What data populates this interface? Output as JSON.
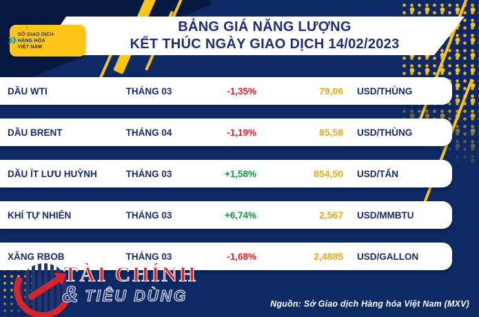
{
  "mxv_logo": {
    "line1": "SỞ GIAO DỊCH",
    "line2": "HÀNG HÓA",
    "line3": "VIỆT NAM",
    "trademark": "™"
  },
  "header": {
    "title_line1": "BẢNG GIÁ NĂNG LƯỢNG",
    "title_line2": "KẾT THÚC NGÀY GIAO DỊCH 14/02/2023"
  },
  "chart_data": {
    "type": "table",
    "title": "BẢNG GIÁ NĂNG LƯỢNG KẾT THÚC NGÀY GIAO DỊCH 14/02/2023",
    "rows": [
      {
        "name": "DẦU WTI",
        "month": "THÁNG 03",
        "change": "-1,35%",
        "price": "79,06",
        "unit": "USD/THÙNG"
      },
      {
        "name": "DẦU BRENT",
        "month": "THÁNG 04",
        "change": "-1,19%",
        "price": "85,58",
        "unit": "USD/THÙNG"
      },
      {
        "name": "DẦU ÍT LƯU HUỲNH",
        "month": "THÁNG 03",
        "change": "+1,58%",
        "price": "854,50",
        "unit": "USD/TẤN"
      },
      {
        "name": "KHÍ TỰ NHIÊN",
        "month": "THÁNG 03",
        "change": "+6,74%",
        "price": "2,567",
        "unit": "USD/MMBTU"
      },
      {
        "name": "XĂNG RBOB",
        "month": "THÁNG 03",
        "change": "-1,68%",
        "price": "2,4885",
        "unit": "USD/GALLON"
      }
    ]
  },
  "footer": {
    "brand_line1": "TÀI CHÍNH",
    "brand_amp": "&",
    "brand_line2": "TIÊU DÙNG",
    "source": "Nguồn: Sở Giao dịch Hàng hóa Việt Nam (MXV)"
  },
  "colors": {
    "background_navy": "#0d2a66",
    "text_navy": "#16296f",
    "negative_red": "#ed1c24",
    "positive_green": "#089b3f",
    "price_orange": "#f0a51e",
    "accent_yellow": "#fdc515",
    "logo_teal": "#14a2b2",
    "brand_red": "#d6252b"
  }
}
